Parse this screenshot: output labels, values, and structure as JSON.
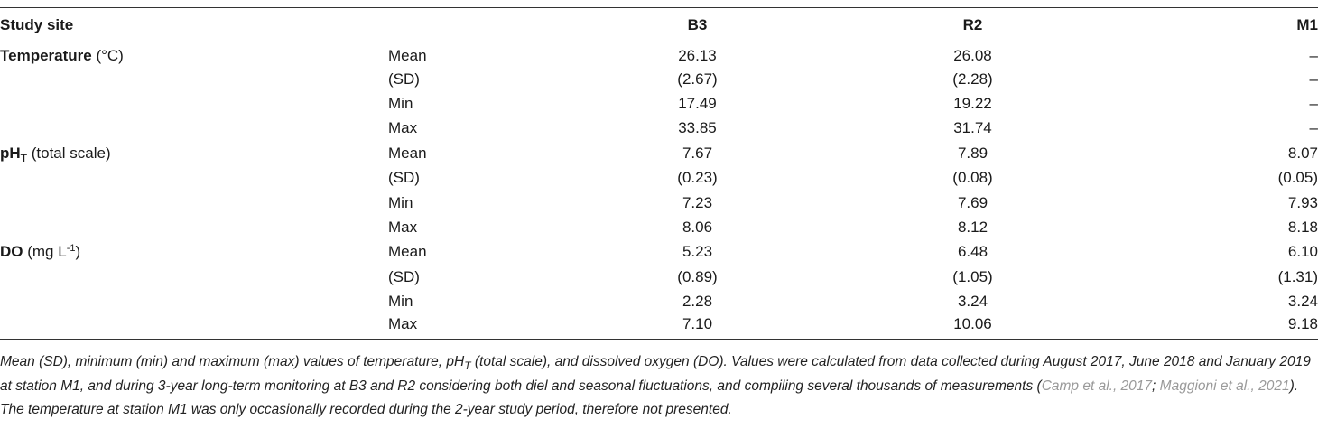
{
  "header": {
    "site_label": "Study site",
    "stat_label": "",
    "col_b3": "B3",
    "col_r2": "R2",
    "col_m1": "M1"
  },
  "groups": [
    {
      "param": "Temperature",
      "unit": " (°C)",
      "rows": [
        {
          "stat": "Mean",
          "b3": "26.13",
          "r2": "26.08",
          "m1": "–"
        },
        {
          "stat": "(SD)",
          "b3": "(2.67)",
          "r2": "(2.28)",
          "m1": "–"
        },
        {
          "stat": "Min",
          "b3": "17.49",
          "r2": "19.22",
          "m1": "–"
        },
        {
          "stat": "Max",
          "b3": "33.85",
          "r2": "31.74",
          "m1": "–"
        }
      ]
    },
    {
      "param": "pH",
      "param_sub": "T",
      "unit": " (total scale)",
      "rows": [
        {
          "stat": "Mean",
          "b3": "7.67",
          "r2": "7.89",
          "m1": "8.07"
        },
        {
          "stat": "(SD)",
          "b3": "(0.23)",
          "r2": "(0.08)",
          "m1": "(0.05)"
        },
        {
          "stat": "Min",
          "b3": "7.23",
          "r2": "7.69",
          "m1": "7.93"
        },
        {
          "stat": "Max",
          "b3": "8.06",
          "r2": "8.12",
          "m1": "8.18"
        }
      ]
    },
    {
      "param": "DO",
      "unit": " (mg L",
      "unit_sup": "-1",
      "unit_close": ")",
      "rows": [
        {
          "stat": "Mean",
          "b3": "5.23",
          "r2": "6.48",
          "m1": "6.10"
        },
        {
          "stat": "(SD)",
          "b3": "(0.89)",
          "r2": "(1.05)",
          "m1": "(1.31)"
        },
        {
          "stat": "Min",
          "b3": "2.28",
          "r2": "3.24",
          "m1": "3.24"
        },
        {
          "stat": "Max",
          "b3": "7.10",
          "r2": "10.06",
          "m1": "9.18"
        }
      ]
    }
  ],
  "caption": {
    "part1": "Mean (SD), minimum (min) and maximum (max) values of temperature, pH",
    "part1_sub": "T",
    "part2": " (total scale), and dissolved oxygen (DO). Values were calculated from data collected during August 2017, June 2018 and January 2019 at station M1, and during 3-year long-term monitoring at B3 and R2 considering both diel and seasonal fluctuations, and compiling several thousands of measurements (",
    "cite1": "Camp et al., 2017",
    "sep": "; ",
    "cite2": "Maggioni et al., 2021",
    "part3": "). The temperature at station M1 was only occasionally recorded during the 2-year study period, therefore not presented."
  }
}
